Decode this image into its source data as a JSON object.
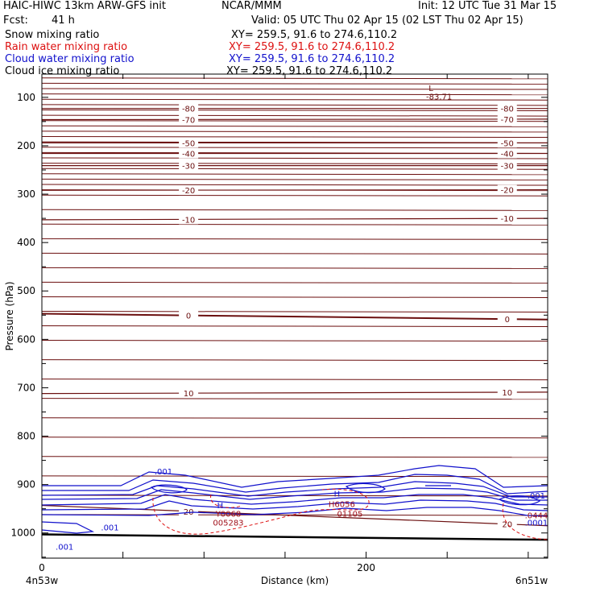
{
  "header": {
    "title": "HAIC-HIWC 13km ARW-GFS init",
    "org": "NCAR/MMM",
    "init": "Init: 12 UTC Tue 31 Mar 15",
    "fcst_label": "Fcst:",
    "fcst_value": "41 h",
    "valid": "Valid: 05 UTC Thu 02 Apr 15 (02 LST Thu 02 Apr 15)",
    "fields": [
      {
        "name": "Snow mixing ratio",
        "xy": "XY= 259.5, 91.6 to 274.6,110.2",
        "color": "#000000"
      },
      {
        "name": "Rain water mixing ratio",
        "xy": "XY= 259.5, 91.6 to 274.6,110.2",
        "color": "#dd1111"
      },
      {
        "name": "Cloud water mixing ratio",
        "xy": "XY= 259.5, 91.6 to 274.6,110.2",
        "color": "#1111cc"
      },
      {
        "name": "Cloud ice mixing ratio",
        "xy": "XY= 259.5, 91.6 to 274.6,110.2",
        "color": "#000000"
      }
    ]
  },
  "chart_data": {
    "type": "line",
    "xlabel": "Distance (km)",
    "ylabel": "Pressure (hPa)",
    "xlim": [
      0,
      312
    ],
    "ylim": [
      1052,
      52
    ],
    "x_ticks": [
      0,
      200
    ],
    "y_ticks": [
      100,
      200,
      300,
      400,
      500,
      600,
      700,
      800,
      900,
      1000
    ],
    "left_endpoint": "4n53w",
    "right_endpoint": "6n51w",
    "temperature_contours": [
      {
        "value": -80,
        "label": "-80",
        "left_p": 123,
        "right_p": 123
      },
      {
        "value": -70,
        "label": "-70",
        "left_p": 146,
        "right_p": 145
      },
      {
        "value": -50,
        "label": "-50",
        "left_p": 194,
        "right_p": 194
      },
      {
        "value": -40,
        "label": "-40",
        "left_p": 216,
        "right_p": 216
      },
      {
        "value": -30,
        "label": "-30",
        "left_p": 241,
        "right_p": 241
      },
      {
        "value": -20,
        "label": "-20",
        "left_p": 292,
        "right_p": 291
      },
      {
        "value": -10,
        "label": "-10",
        "left_p": 353,
        "right_p": 350
      },
      {
        "value": 0,
        "label": "0",
        "left_p": 547,
        "right_p": 559
      },
      {
        "value": 10,
        "label": "10",
        "left_p": 712,
        "right_p": 709
      },
      {
        "value": 20,
        "label": "20",
        "left_p": 943,
        "right_p": 985
      }
    ],
    "annotations": [
      {
        "text": "L",
        "x": 240,
        "p": 80
      },
      {
        "text": "-83.71",
        "x": 245,
        "p": 98
      },
      {
        "text": "H",
        "x": 110,
        "p": 942
      },
      {
        "text": "H",
        "x": 182,
        "p": 918
      },
      {
        "text": ".001",
        "x": 75,
        "p": 872
      },
      {
        "text": ".001",
        "x": 42,
        "p": 988
      },
      {
        "text": ".001",
        "x": 14,
        "p": 1028
      },
      {
        "text": ".001",
        "x": 305,
        "p": 922
      },
      {
        "text": ".0001",
        "x": 305,
        "p": 978
      },
      {
        "text": "Y0068",
        "x": 115,
        "p": 960
      },
      {
        "text": "005283",
        "x": 115,
        "p": 978
      },
      {
        "text": "H6056",
        "x": 185,
        "p": 940
      },
      {
        "text": "01105",
        "x": 190,
        "p": 960
      },
      {
        "text": ".0444",
        "x": 305,
        "p": 963
      }
    ]
  }
}
